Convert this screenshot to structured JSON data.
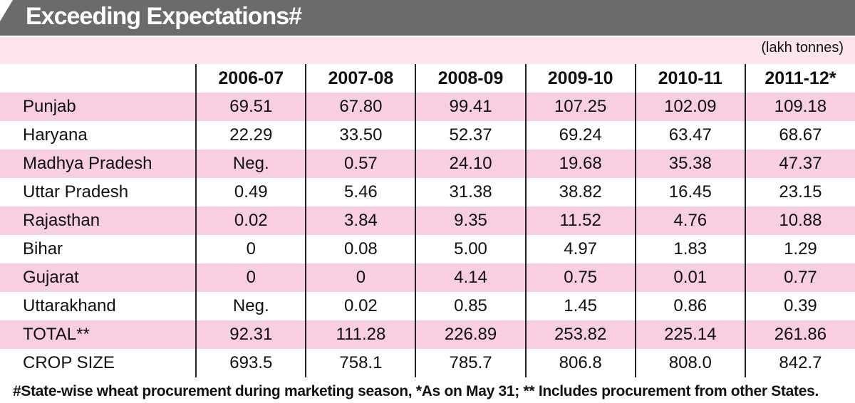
{
  "title": "Exceeding Expectations#",
  "units": "(lakh tonnes)",
  "footnote": "#State-wise wheat procurement during marketing season, *As on May 31; ** Includes procurement from other States.",
  "chart_data": {
    "type": "table",
    "columns": [
      "2006-07",
      "2007-08",
      "2008-09",
      "2009-10",
      "2010-11",
      "2011-12*"
    ],
    "rows": [
      {
        "label": "Punjab",
        "values": [
          "69.51",
          "67.80",
          "99.41",
          "107.25",
          "102.09",
          "109.18"
        ]
      },
      {
        "label": "Haryana",
        "values": [
          "22.29",
          "33.50",
          "52.37",
          "69.24",
          "63.47",
          "68.67"
        ]
      },
      {
        "label": "Madhya Pradesh",
        "values": [
          "Neg.",
          "0.57",
          "24.10",
          "19.68",
          "35.38",
          "47.37"
        ]
      },
      {
        "label": "Uttar Pradesh",
        "values": [
          "0.49",
          "5.46",
          "31.38",
          "38.82",
          "16.45",
          "23.15"
        ]
      },
      {
        "label": "Rajasthan",
        "values": [
          "0.02",
          "3.84",
          "9.35",
          "11.52",
          "4.76",
          "10.88"
        ]
      },
      {
        "label": "Bihar",
        "values": [
          "0",
          "0.08",
          "5.00",
          "4.97",
          "1.83",
          "1.29"
        ]
      },
      {
        "label": "Gujarat",
        "values": [
          "0",
          "0",
          "4.14",
          "0.75",
          "0.01",
          "0.77"
        ]
      },
      {
        "label": "Uttarakhand",
        "values": [
          "Neg.",
          "0.02",
          "0.85",
          "1.45",
          "0.86",
          "0.39"
        ]
      },
      {
        "label": "TOTAL**",
        "values": [
          "92.31",
          "111.28",
          "226.89",
          "253.82",
          "225.14",
          "261.86"
        ]
      },
      {
        "label": "CROP SIZE",
        "values": [
          "693.5",
          "758.1",
          "785.7",
          "806.8",
          "808.0",
          "842.7"
        ]
      }
    ]
  },
  "colors": {
    "header_band": "#6b6b6b",
    "pink_row": "#f8cfe0",
    "light_pink": "#fce4ec"
  }
}
